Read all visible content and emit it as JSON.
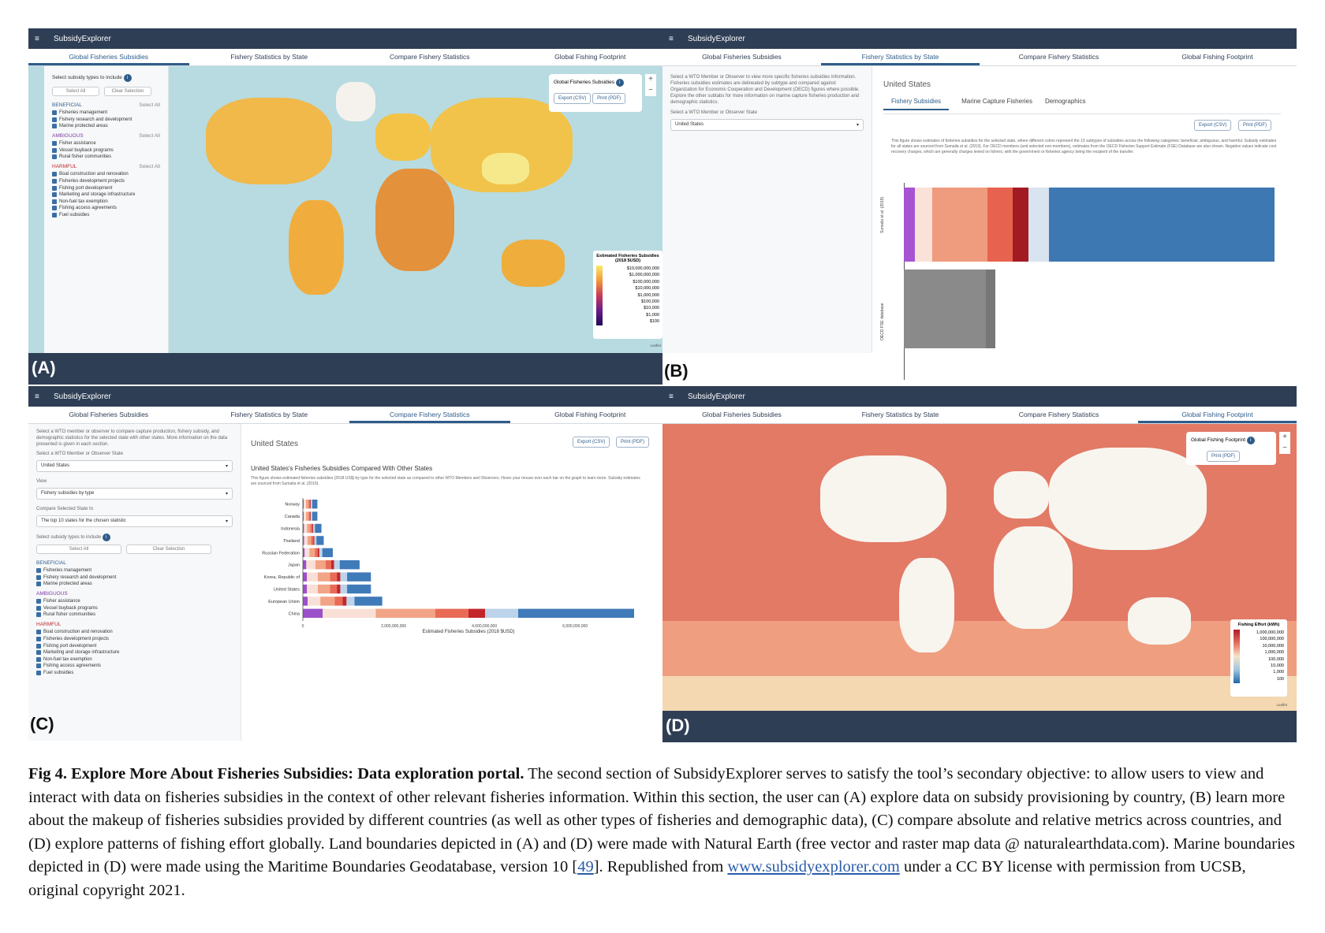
{
  "app_title": "SubsidyExplorer",
  "tabs": [
    "Global Fisheries Subsidies",
    "Fishery Statistics by State",
    "Compare Fishery Statistics",
    "Global Fishing Footprint"
  ],
  "panel_labels": [
    "(A)",
    "(B)",
    "(C)",
    "(D)"
  ],
  "sidebar": {
    "select_types": "Select subsidy types to include",
    "select_all": "Select All",
    "clear_selection": "Clear Selection",
    "beneficial": "BENEFICIAL",
    "ambiguous": "AMBIGUOUS",
    "harmful": "HARMFUL",
    "beneficial_items": [
      "Fisheries management",
      "Fishery research and development",
      "Marine protected areas"
    ],
    "ambiguous_items": [
      "Fisher assistance",
      "Vessel buyback programs",
      "Rural fisher communities"
    ],
    "harmful_items": [
      "Boat construction and renovation",
      "Fisheries development projects",
      "Fishing port development",
      "Marketing and storage infrastructure",
      "Non-fuel tax exemption",
      "Fishing access agreements",
      "Fuel subsidies"
    ]
  },
  "panel_a": {
    "map_control_title": "Global Fisheries Subsidies",
    "export_csv": "Export (CSV)",
    "print_pdf": "Print (PDF)",
    "legend_title": "Estimated Fisheries Subsidies (2018 $USD)",
    "legend_ticks": [
      "$10,000,000,000",
      "$1,000,000,000",
      "$100,000,000",
      "$10,000,000",
      "$1,000,000",
      "$100,000",
      "$10,000",
      "$1,000",
      "$100"
    ],
    "zoom_in": "+",
    "zoom_out": "−",
    "leaflet": "Leaflet"
  },
  "panel_b": {
    "intro": "Select a WTO Member or Observer to view more specific fisheries subsidies information. Fisheries subsidies estimates are delineated by subtype and compared against Organization for Economic Cooperation and Development (OECD) figures where possible. Explore the other subtabs for more information on marine capture fisheries production and demographic statistics.",
    "select_label": "Select a WTO Member or Observer State",
    "selected_state": "United States",
    "state_title": "United States",
    "subtabs": [
      "Fishery Subsidies",
      "Marine Capture Fisheries",
      "Demographics"
    ],
    "export_csv": "Export (CSV)",
    "print_pdf": "Print (PDF)",
    "description": "This figure shows estimates of fisheries subsidies for the selected state, where different colors represent the 13 subtypes of subsidies across the following categories: beneficial, ambiguous, and harmful. Subsidy estimates for all states are sourced from Sumaila et al. (2019). For OECD members (and selected non-members), estimates from the OECD Fisheries Support Estimate (FSE) Database are also shown. Negative values indicate cost recovery charges, which are generally charges levied on fishers, with the government or fisheries agency being the recipient of the transfer.",
    "row_labels": [
      "Sumaila et al. (2019)",
      "OECD FSE database"
    ]
  },
  "panel_c": {
    "intro": "Select a WTO member or observer to compare capture production, fishery subsidy, and demographic statistics for the selected state with other states. More information on the data presented is given in each section.",
    "select_label": "Select a WTO Member or Observer State",
    "selected_state": "United States",
    "view_label": "View",
    "view_value": "Fishery subsidies by type",
    "compare_label": "Compare Selected State to",
    "compare_value": "The top 10 states for the chosen statistic",
    "state_title": "United States",
    "export_csv": "Export (CSV)",
    "print_pdf": "Print (PDF)",
    "chart_title": "United States's Fisheries Subsidies Compared With Other States",
    "chart_desc": "This figure shows estimated fisheries subsidies (2018 US$) by type for the selected state as compared to other WTO Members and Observers. Hover your mouse over each bar on the graph to learn more. Subsidy estimates are sourced from Sumaila et al. (2019)."
  },
  "panel_d": {
    "map_control_title": "Global Fishing Footprint",
    "print_pdf": "Print (PDF)",
    "legend_title": "Fishing Effort (kWh)",
    "legend_ticks": [
      "1,000,000,000",
      "100,000,000",
      "10,000,000",
      "1,000,000",
      "100,000",
      "10,000",
      "1,000",
      "100"
    ],
    "zoom_in": "+",
    "zoom_out": "−",
    "leaflet": "Leaflet"
  },
  "chart_data": {
    "type": "bar",
    "orientation": "horizontal",
    "stacked": true,
    "categories": [
      "Norway",
      "Canada",
      "Indonesia",
      "Thailand",
      "Russian Federation",
      "Japan",
      "Korea, Republic of",
      "United States",
      "European Union",
      "China"
    ],
    "totals": [
      320000000,
      320000000,
      410000000,
      460000000,
      660000000,
      1250000000,
      1500000000,
      1500000000,
      1750000000,
      7300000000
    ],
    "xlabel": "Estimated Fisheries Subsidies (2018 $USD)",
    "xticks": [
      "0",
      "2,000,000,000",
      "4,000,000,000",
      "6,000,000,000"
    ],
    "xlim": [
      0,
      7300000000
    ],
    "segment_colors": [
      "#9b4fc9",
      "#f9e0d6",
      "#f2a486",
      "#e96b55",
      "#c2262b",
      "#bcd3ea",
      "#3f7ab9"
    ]
  },
  "caption": {
    "fig_label": "Fig 4.",
    "fig_title": "Explore More About Fisheries Subsidies: Data exploration portal.",
    "body": "The second section of SubsidyExplorer serves to satisfy the tool’s secondary objective: to allow users to view and interact with data on fisheries subsidies in the context of other relevant fisheries information. Within this section, the user can (A) explore data on subsidy provisioning by country, (B) learn more about the makeup of fisheries subsidies provided by different countries (as well as other types of fisheries and demographic data), (C) compare absolute and relative metrics across countries, and (D) explore patterns of fishing effort globally. Land boundaries depicted in (A) and (D) were made with Natural Earth (free vector and raster map data @ naturalearthdata.com). Marine boundaries depicted in (D) were made using the Maritime Boundaries Geodatabase, version 10 [",
    "ref": "49",
    "body2": "]. Republished from ",
    "link": "www.subsidyexplorer.com",
    "body3": " under a CC BY license with permission from UCSB, original copyright 2021."
  }
}
